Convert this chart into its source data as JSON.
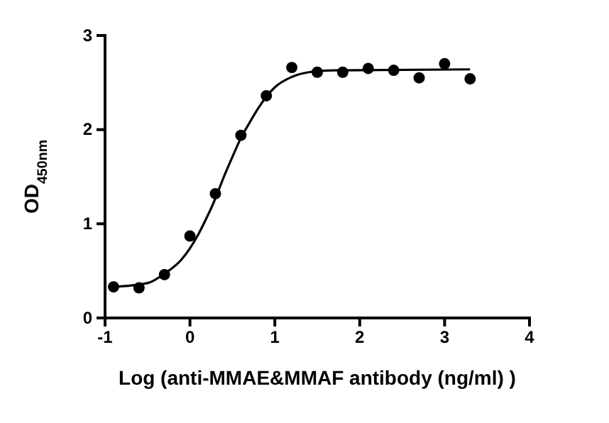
{
  "chart_data": {
    "type": "scatter",
    "xlabel": "Log (anti-MMAE&MMAF antibody (ng/ml) )",
    "ylabel": "OD$_{450nm}$",
    "xlim": [
      -1,
      4
    ],
    "xticks": [
      -1,
      0,
      1,
      2,
      3,
      4
    ],
    "ylim": [
      0,
      3
    ],
    "yticks": [
      0,
      1,
      2,
      3
    ],
    "grid": false,
    "series": [
      {
        "color": "#000000",
        "marker": "circle",
        "x": [
          -0.9,
          -0.6,
          -0.3,
          0,
          0.3,
          0.6,
          0.9,
          1.2,
          1.5,
          1.8,
          2.1,
          2.4,
          2.7,
          3.0,
          3.3
        ],
        "values": [
          0.33,
          0.32,
          0.46,
          0.87,
          1.32,
          1.94,
          2.36,
          2.66,
          2.61,
          2.61,
          2.65,
          2.63,
          2.55,
          2.7,
          2.54
        ]
      },
      {
        "type": "line",
        "color": "#000000",
        "marker": "none",
        "line_style": "solid",
        "x": [
          -0.9,
          -0.5,
          -0.3,
          -0.1,
          0,
          0.1,
          0.2,
          0.3,
          0.4,
          0.5,
          0.6,
          0.7,
          0.8,
          0.9,
          1.0,
          1.2,
          1.4,
          1.7,
          3.3
        ],
        "values": [
          0.33,
          0.37,
          0.47,
          0.62,
          0.74,
          0.89,
          1.07,
          1.27,
          1.5,
          1.71,
          1.91,
          2.07,
          2.22,
          2.35,
          2.45,
          2.56,
          2.61,
          2.63,
          2.64
        ]
      }
    ]
  }
}
